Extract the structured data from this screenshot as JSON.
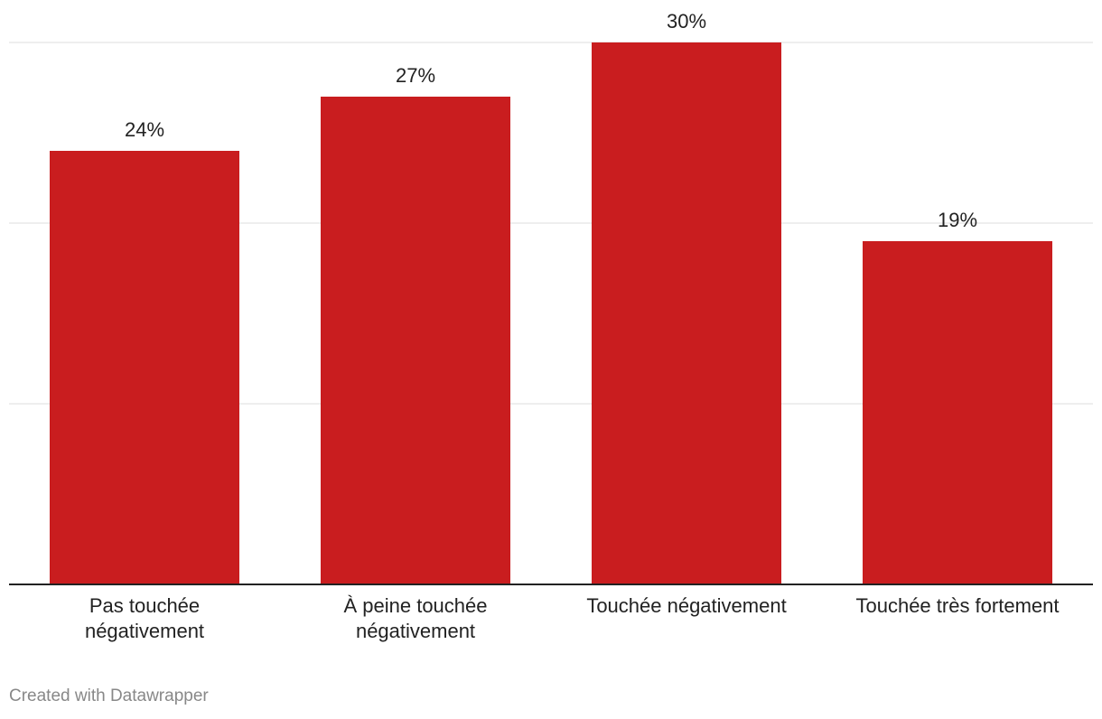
{
  "chart_data": {
    "type": "bar",
    "categories": [
      "Pas touchée négativement",
      "À peine touchée négativement",
      "Touchée négativement",
      "Touchée très fortement"
    ],
    "values": [
      24,
      27,
      30,
      19
    ],
    "value_labels": [
      "24%",
      "27%",
      "30%",
      "19%"
    ],
    "color": "#c91d1f",
    "ylim": [
      0,
      30
    ],
    "yticks": [
      0,
      10,
      20,
      30
    ],
    "grid": true,
    "footer": "Created with Datawrapper"
  }
}
